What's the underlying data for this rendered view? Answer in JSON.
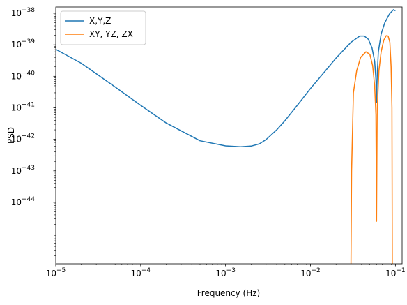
{
  "chart_data": {
    "type": "line",
    "xscale": "log",
    "yscale": "log",
    "xlabel": "Frequency (Hz)",
    "ylabel": "PSD",
    "xlim": [
      "1e-5",
      "0.12"
    ],
    "ylim": [
      "1e-45.95",
      "1e-37.8"
    ],
    "xticks": [
      {
        "base": "10",
        "exp": "−5",
        "value": 1e-05
      },
      {
        "base": "10",
        "exp": "−4",
        "value": 0.0001
      },
      {
        "base": "10",
        "exp": "−3",
        "value": 0.001
      },
      {
        "base": "10",
        "exp": "−2",
        "value": 0.01
      },
      {
        "base": "10",
        "exp": "−1",
        "value": 0.1
      }
    ],
    "yticks": [
      {
        "base": "10",
        "exp": "−44",
        "value": 1e-44
      },
      {
        "base": "10",
        "exp": "−43",
        "value": 1e-43
      },
      {
        "base": "10",
        "exp": "−42",
        "value": 1e-42
      },
      {
        "base": "10",
        "exp": "−41",
        "value": 1e-41
      },
      {
        "base": "10",
        "exp": "−40",
        "value": 1e-40
      },
      {
        "base": "10",
        "exp": "−39",
        "value": 1e-39
      },
      {
        "base": "10",
        "exp": "−38",
        "value": 1e-38
      }
    ],
    "grid": false,
    "legend_position": "top-left",
    "series": [
      {
        "name": "X,Y,Z",
        "color": "#1f77b4",
        "points": [
          [
            1e-05,
            7.2e-40
          ],
          [
            2e-05,
            2.6e-40
          ],
          [
            5e-05,
            4.6e-41
          ],
          [
            0.0001,
            1.2e-41
          ],
          [
            0.0002,
            3.3e-42
          ],
          [
            0.0005,
            9e-43
          ],
          [
            0.001,
            6.2e-43
          ],
          [
            0.0015,
            5.8e-43
          ],
          [
            0.002,
            6.1e-43
          ],
          [
            0.0025,
            7.2e-43
          ],
          [
            0.003,
            9.8e-43
          ],
          [
            0.004,
            2e-42
          ],
          [
            0.005,
            3.9e-42
          ],
          [
            0.007,
            1.2e-41
          ],
          [
            0.01,
            4.1e-41
          ],
          [
            0.015,
            1.5e-40
          ],
          [
            0.02,
            3.8e-40
          ],
          [
            0.03,
            1.2e-39
          ],
          [
            0.038,
            1.9e-39
          ],
          [
            0.043,
            1.9e-39
          ],
          [
            0.048,
            1.5e-39
          ],
          [
            0.053,
            8e-40
          ],
          [
            0.057,
            3e-40
          ],
          [
            0.059,
            8e-41
          ],
          [
            0.06,
            1.5e-41
          ],
          [
            0.061,
            1e-40
          ],
          [
            0.063,
            6e-40
          ],
          [
            0.068,
            2.2e-39
          ],
          [
            0.075,
            5e-39
          ],
          [
            0.085,
            9.5e-39
          ],
          [
            0.095,
            1.3e-38
          ],
          [
            0.1,
            1.2e-38
          ]
        ]
      },
      {
        "name": "XY, YZ, ZX",
        "color": "#ff7f0e",
        "points": [
          [
            0.03,
            1e-46
          ],
          [
            0.0305,
            1e-43
          ],
          [
            0.032,
            3e-41
          ],
          [
            0.035,
            1.5e-40
          ],
          [
            0.039,
            4e-40
          ],
          [
            0.045,
            6e-40
          ],
          [
            0.05,
            5e-40
          ],
          [
            0.054,
            2.2e-40
          ],
          [
            0.057,
            5e-41
          ],
          [
            0.059,
            6e-42
          ],
          [
            0.06,
            2.5e-45
          ],
          [
            0.061,
            8e-42
          ],
          [
            0.064,
            1.5e-40
          ],
          [
            0.068,
            6e-40
          ],
          [
            0.073,
            1.4e-39
          ],
          [
            0.078,
            1.95e-39
          ],
          [
            0.082,
            1.9e-39
          ],
          [
            0.086,
            1.2e-39
          ],
          [
            0.089,
            2e-40
          ],
          [
            0.091,
            1e-41
          ],
          [
            0.092,
            1e-46
          ]
        ]
      }
    ]
  }
}
